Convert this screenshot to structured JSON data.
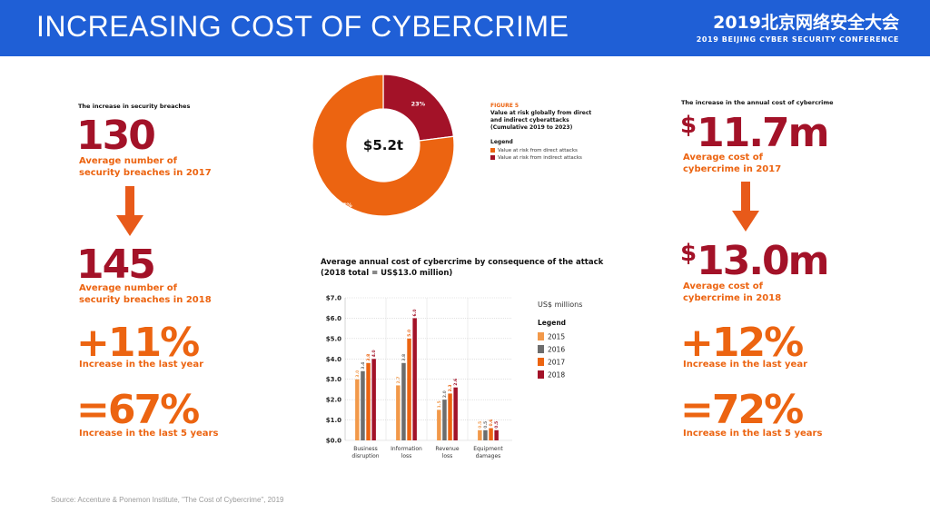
{
  "header": {
    "title": "INCREASING COST OF CYBERCRIME",
    "conference_cn": "2019北京网络安全大会",
    "conference_en": "2019 BEIJING CYBER SECURITY CONFERENCE"
  },
  "left_panel": {
    "caption": "The increase in security breaches",
    "value_2017": "130",
    "label_2017": "Average number of security breaches in 2017",
    "value_2018": "145",
    "label_2018": "Average number of security breaches in 2018",
    "change_year": "+11%",
    "change_year_label": "Increase in the last year",
    "change_5y": "=67%",
    "change_5y_label": "Increase in the last 5 years"
  },
  "right_panel": {
    "caption": "The increase in the annual cost of cybercrime",
    "value_2017_symbol": "$",
    "value_2017": "11.7m",
    "label_2017": "Average cost of cybercrime in 2017",
    "value_2018_symbol": "$",
    "value_2018": "13.0m",
    "label_2018": "Average cost of cybercrime in 2018",
    "change_year": "+12%",
    "change_year_label": "Increase in the last year",
    "change_5y": "=72%",
    "change_5y_label": "Increase in the last 5 years"
  },
  "donut_figure": {
    "figure_label": "FIGURE 5",
    "caption_lines": [
      "Value at risk globally from direct",
      "and indirect cyberattacks",
      "(Cumulative 2019 to 2023)"
    ],
    "legend_title": "Legend",
    "center_label": "$5.2t"
  },
  "bar_figure": {
    "title_line1": "Average annual cost of cybercrime by consequence of the attack",
    "title_line2": "(2018 total = US$13.0 million)"
  },
  "colors": {
    "header_bg": "#1f5fd6",
    "orange": "#ec6411",
    "dark_red": "#a31228",
    "gray": "#6d6d6d",
    "light_orange": "#f2994a"
  },
  "chart_data": [
    {
      "type": "pie",
      "title": "Value at risk globally from direct and indirect cyberattacks",
      "categories": [
        "Value at risk from direct attacks",
        "Value at risk from indirect attacks"
      ],
      "values": [
        77,
        23
      ],
      "labels": [
        "77%",
        "23%"
      ],
      "colors": [
        "#ec6411",
        "#a31228"
      ]
    },
    {
      "type": "bar",
      "title": "Average annual cost of cybercrime by consequence of the attack",
      "categories": [
        [
          "Business",
          "disruption"
        ],
        [
          "Information",
          "loss"
        ],
        [
          "Revenue",
          "loss"
        ],
        [
          "Equipment",
          "damages"
        ]
      ],
      "series": [
        {
          "name": "2015",
          "values": [
            3.0,
            2.7,
            1.5,
            0.5
          ],
          "labels": [
            "3.0",
            "2.7",
            "1.5",
            "0.5"
          ],
          "color": "#f2994a"
        },
        {
          "name": "2016",
          "values": [
            3.4,
            3.8,
            2.0,
            0.5
          ],
          "labels": [
            "3.4",
            "3.8",
            "2.0",
            "0.5"
          ],
          "color": "#6d6d6d"
        },
        {
          "name": "2017",
          "values": [
            3.8,
            5.0,
            2.3,
            0.6
          ],
          "labels": [
            "3.8",
            "5.0",
            "2.3",
            "0.6"
          ],
          "color": "#ec6411"
        },
        {
          "name": "2018",
          "values": [
            4.0,
            6.0,
            2.6,
            0.5
          ],
          "labels": [
            "4.0",
            "6.0",
            "2.6",
            "0.5"
          ],
          "color": "#a31228"
        }
      ],
      "y_ticks": [
        "$0.0",
        "$1.0",
        "$2.0",
        "$3.0",
        "$4.0",
        "$5.0",
        "$6.0",
        "$7.0"
      ],
      "ylim": [
        0,
        7
      ],
      "unit_label": "US$ millions",
      "legend_title": "Legend",
      "legend_position": "right"
    }
  ],
  "source": "Source: Accenture & Ponemon Institute, \"The Cost of Cybercrime\", 2019"
}
